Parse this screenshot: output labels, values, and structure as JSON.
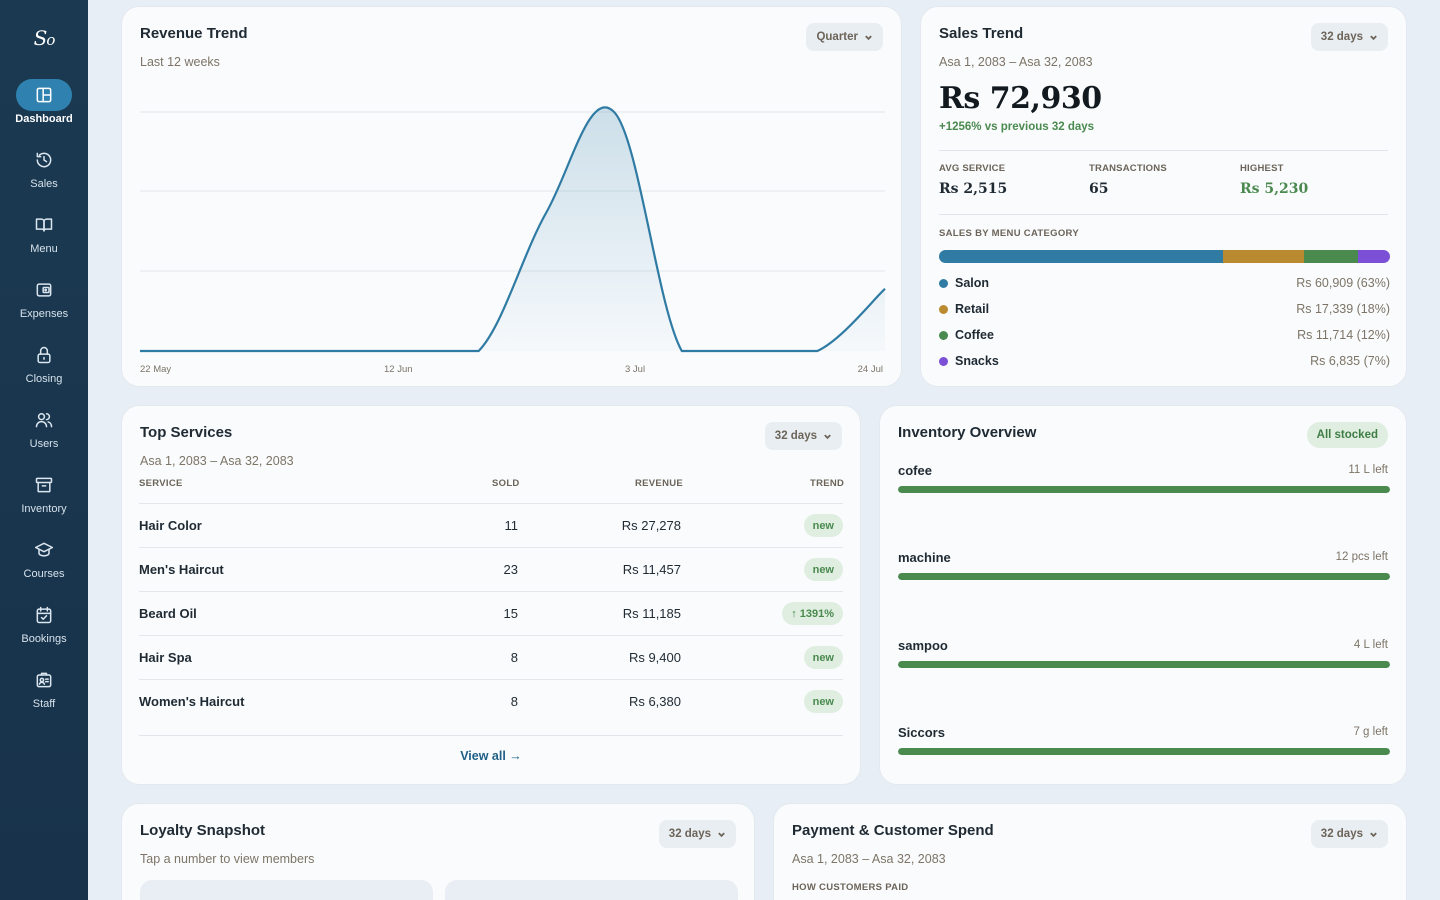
{
  "app": {
    "logo_main": "S",
    "logo_sub": "o"
  },
  "sidebar": {
    "items": [
      {
        "label": "Dashboard",
        "icon": "dashboard-icon",
        "active": true
      },
      {
        "label": "Sales",
        "icon": "history-icon"
      },
      {
        "label": "Menu",
        "icon": "book-icon"
      },
      {
        "label": "Expenses",
        "icon": "wallet-icon"
      },
      {
        "label": "Closing",
        "icon": "lock-icon"
      },
      {
        "label": "Users",
        "icon": "users-icon"
      },
      {
        "label": "Inventory",
        "icon": "archive-icon"
      },
      {
        "label": "Courses",
        "icon": "graduation-cap-icon"
      },
      {
        "label": "Bookings",
        "icon": "calendar-check-icon"
      },
      {
        "label": "Staff",
        "icon": "id-badge-icon"
      }
    ]
  },
  "revenue_trend": {
    "title": "Revenue Trend",
    "subtitle": "Last 12 weeks",
    "period": "Quarter",
    "x_ticks": [
      "22 May",
      "12 Jun",
      "3 Jul",
      "24 Jul"
    ],
    "accent": "#2f7ba3"
  },
  "chart_data": {
    "type": "area",
    "title": "Revenue Trend",
    "subtitle": "Last 12 weeks",
    "x_tick_labels": [
      "22 May",
      "12 Jun",
      "3 Jul",
      "24 Jul"
    ],
    "x": [
      0,
      1,
      2,
      3,
      4,
      5,
      6,
      7,
      8,
      9,
      10,
      11
    ],
    "values": [
      0,
      0,
      0,
      0,
      0,
      0,
      0.58,
      1.0,
      0,
      0,
      0,
      0.26
    ],
    "grid": true,
    "legend": "none"
  },
  "sales_trend": {
    "title": "Sales Trend",
    "period": "32 days",
    "range": "Asa 1, 2083 – Asa 32, 2083",
    "total": "Rs 72,930",
    "delta": "+1256% vs previous 32 days",
    "stats": [
      {
        "label": "AVG SERVICE",
        "value": "Rs 2,515"
      },
      {
        "label": "TRANSACTIONS",
        "value": "65"
      },
      {
        "label": "HIGHEST",
        "value": "Rs 5,230"
      }
    ],
    "category_label": "SALES BY MENU CATEGORY",
    "categories": [
      {
        "name": "Salon",
        "value": "Rs 60,909 (63%)",
        "share": 63,
        "color": "#2f7ba3"
      },
      {
        "name": "Retail",
        "value": "Rs 17,339 (18%)",
        "share": 18,
        "color": "#b98a2f"
      },
      {
        "name": "Coffee",
        "value": "Rs 11,714 (12%)",
        "share": 12,
        "color": "#4a8a4f"
      },
      {
        "name": "Snacks",
        "value": "Rs 6,835 (7%)",
        "share": 7,
        "color": "#7b4fd6"
      }
    ]
  },
  "top_services": {
    "title": "Top Services",
    "period": "32 days",
    "range": "Asa 1, 2083 – Asa 32, 2083",
    "headers": {
      "service": "SERVICE",
      "sold": "SOLD",
      "revenue": "REVENUE",
      "trend": "TREND"
    },
    "rows": [
      {
        "service": "Hair Color",
        "sold": "11",
        "revenue": "Rs 27,278",
        "trend": "new"
      },
      {
        "service": "Men's Haircut",
        "sold": "23",
        "revenue": "Rs 11,457",
        "trend": "new"
      },
      {
        "service": "Beard Oil",
        "sold": "15",
        "revenue": "Rs 11,185",
        "trend": "↑ 1391%"
      },
      {
        "service": "Hair Spa",
        "sold": "8",
        "revenue": "Rs 9,400",
        "trend": "new"
      },
      {
        "service": "Women's Haircut",
        "sold": "8",
        "revenue": "Rs 6,380",
        "trend": "new"
      }
    ],
    "view_all": "View all →"
  },
  "inventory": {
    "title": "Inventory Overview",
    "badge": "All stocked",
    "items": [
      {
        "name": "cofee",
        "left": "11 L left",
        "level": 100
      },
      {
        "name": "machine",
        "left": "12 pcs left",
        "level": 100
      },
      {
        "name": "sampoo",
        "left": "4 L left",
        "level": 100
      },
      {
        "name": "Siccors",
        "left": "7 g left",
        "level": 100
      }
    ]
  },
  "loyalty": {
    "title": "Loyalty Snapshot",
    "period": "32 days",
    "subtitle": "Tap a number to view members"
  },
  "payment": {
    "title": "Payment & Customer Spend",
    "period": "32 days",
    "range": "Asa 1, 2083 – Asa 32, 2083",
    "section_label": "HOW CUSTOMERS PAID"
  }
}
